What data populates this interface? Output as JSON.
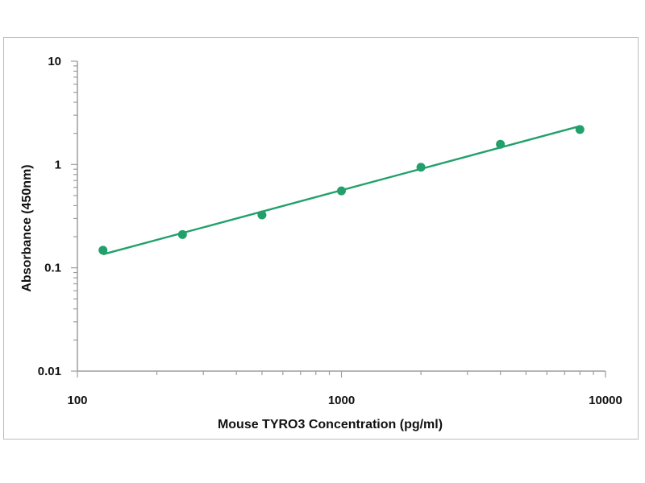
{
  "chart_data": {
    "type": "scatter",
    "title": "",
    "xlabel": "Mouse TYRO3  Concentration (pg/ml)",
    "ylabel": "Absorbance (450nm)",
    "x_scale": "log",
    "y_scale": "log",
    "xlim": [
      100,
      10000
    ],
    "ylim": [
      0.01,
      10
    ],
    "x_ticks": [
      100,
      1000,
      10000
    ],
    "x_tick_labels": [
      "100",
      "1000",
      "10000"
    ],
    "y_ticks": [
      0.01,
      0.1,
      1,
      10
    ],
    "y_tick_labels": [
      "0.01",
      "0.1",
      "1",
      "10"
    ],
    "grid": false,
    "legend": "none",
    "series": [
      {
        "x": [
          125,
          250,
          500,
          1000,
          2000,
          4000,
          8000
        ],
        "y": [
          0.148,
          0.21,
          0.325,
          0.555,
          0.94,
          1.57,
          2.18
        ],
        "color": "#22a06b",
        "marker": "circle"
      }
    ],
    "fit_line": {
      "type": "log-log linear",
      "x": [
        125,
        8000
      ],
      "y": [
        0.135,
        2.35
      ],
      "color": "#22a06b"
    }
  }
}
